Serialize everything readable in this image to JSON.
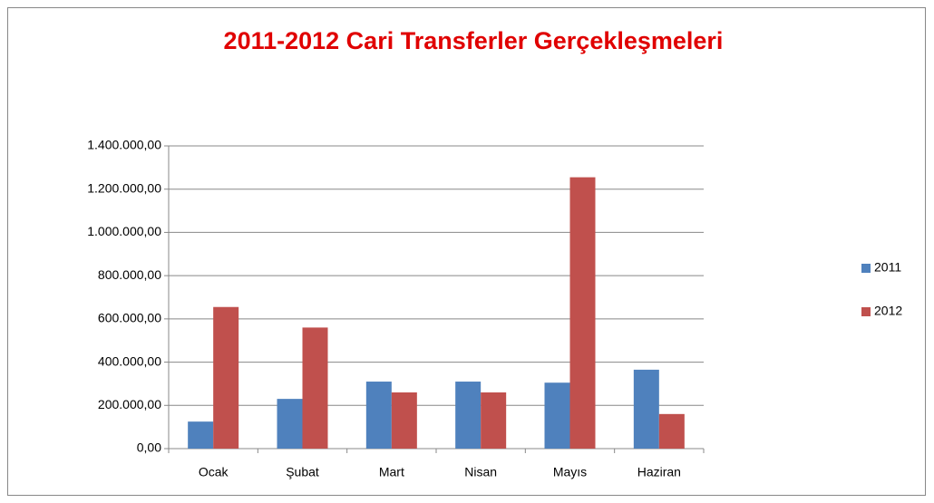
{
  "chart_data": {
    "type": "bar",
    "title": "2011-2012 Cari Transferler Gerçekleşmeleri",
    "categories": [
      "Ocak",
      "Şubat",
      "Mart",
      "Nisan",
      "Mayıs",
      "Haziran"
    ],
    "series": [
      {
        "name": "2011",
        "color": "#4f81bd",
        "values": [
          125000,
          230000,
          310000,
          310000,
          305000,
          365000
        ]
      },
      {
        "name": "2012",
        "color": "#c0504d",
        "values": [
          655000,
          560000,
          260000,
          260000,
          1255000,
          160000
        ]
      }
    ],
    "ylim": [
      0,
      1400000
    ],
    "yticks": [
      {
        "value": 0,
        "label": "0,00"
      },
      {
        "value": 200000,
        "label": "200.000,00"
      },
      {
        "value": 400000,
        "label": "400.000,00"
      },
      {
        "value": 600000,
        "label": "600.000,00"
      },
      {
        "value": 800000,
        "label": "800.000,00"
      },
      {
        "value": 1000000,
        "label": "1.000.000,00"
      },
      {
        "value": 1200000,
        "label": "1.200.000,00"
      },
      {
        "value": 1400000,
        "label": "1.400.000,00"
      }
    ],
    "grid": true,
    "legend": "right"
  }
}
